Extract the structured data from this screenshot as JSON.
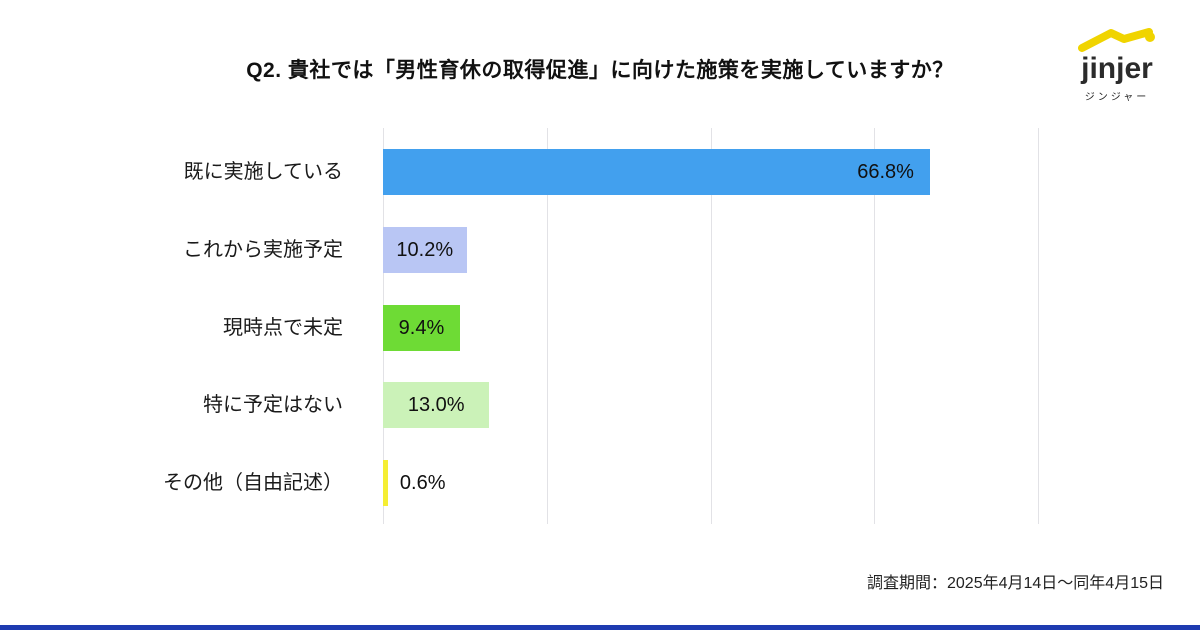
{
  "header": {
    "title": "Q2. 貴社では「男性育休の取得促進」に向けた施策を実施していますか？"
  },
  "logo": {
    "name": "jinjer",
    "subtext": "ジンジャー",
    "mark_color": "#F0D400",
    "text_color": "#2B2B2B"
  },
  "chart_data": {
    "type": "bar",
    "orientation": "horizontal",
    "title": "Q2. 貴社では「男性育休の取得促進」に向けた施策を実施していますか？",
    "categories": [
      "既に実施している",
      "これから実施予定",
      "現時点で未定",
      "特に予定はない",
      "その他（自由記述）"
    ],
    "values": [
      66.8,
      10.2,
      9.4,
      13.0,
      0.6
    ],
    "value_labels": [
      "66.8%",
      "10.2%",
      "9.4%",
      "13.0%",
      "0.6%"
    ],
    "bar_colors": [
      "#42A0EE",
      "#B9C6F4",
      "#6EDB35",
      "#CBF2B8",
      "#F5EE33"
    ],
    "value_label_positions": [
      "inside-right",
      "inside-center",
      "inside-center",
      "inside-center",
      "outside-right"
    ],
    "xlim": [
      0,
      80
    ],
    "gridline_values": [
      0,
      20,
      40,
      60,
      80
    ],
    "grid": true,
    "legend": false,
    "xlabel": "",
    "ylabel": ""
  },
  "footer": {
    "survey_period": "調査期間：2025年4月14日～同年4月15日",
    "accent_bar_color": "#1E3BB0"
  }
}
